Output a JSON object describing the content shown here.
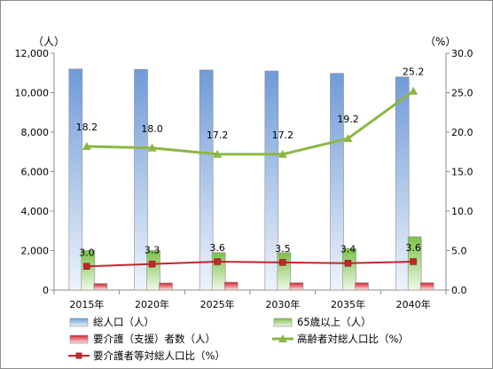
{
  "chart_data": {
    "type": "bar",
    "categories": [
      "2015年",
      "2020年",
      "2025年",
      "2030年",
      "2035年",
      "2040年"
    ],
    "left_axis": {
      "unit": "（人）",
      "ylim": [
        0,
        12000
      ],
      "ticks": [
        0,
        2000,
        4000,
        6000,
        8000,
        10000,
        12000
      ],
      "tick_labels": [
        "0",
        "2,000",
        "4,000",
        "6,000",
        "8,000",
        "10,000",
        "12,000"
      ]
    },
    "right_axis": {
      "unit": "（%）",
      "ylim": [
        0,
        30
      ],
      "ticks": [
        0,
        5,
        10,
        15,
        20,
        25,
        30
      ],
      "tick_labels": [
        "0.0",
        "5.0",
        "10.0",
        "15.0",
        "20.0",
        "25.0",
        "30.0"
      ]
    },
    "series": [
      {
        "name": "総人口（人）",
        "kind": "bar",
        "axis": "left",
        "color": "#8eb4e3",
        "values": [
          11200,
          11180,
          11150,
          11100,
          10980,
          10800
        ]
      },
      {
        "name": "65歳以上（人）",
        "kind": "bar",
        "axis": "left",
        "color": "#92d050",
        "values": [
          2000,
          2000,
          1900,
          1900,
          2100,
          2700
        ]
      },
      {
        "name": "要介護（支援）者数（人）",
        "kind": "bar",
        "axis": "left",
        "color": "#e0484a",
        "values": [
          330,
          360,
          400,
          370,
          370,
          370
        ]
      },
      {
        "name": "高齢者対総人口比（%）",
        "kind": "line",
        "axis": "right",
        "color": "#8db646",
        "marker": "triangle",
        "values": [
          18.2,
          18.0,
          17.2,
          17.2,
          19.2,
          25.2
        ],
        "labels": [
          "18.2",
          "18.0",
          "17.2",
          "17.2",
          "19.2",
          "25.2"
        ]
      },
      {
        "name": "要介護者等対総人口比（%）",
        "kind": "line",
        "axis": "right",
        "color": "#c0272d",
        "marker": "square",
        "values": [
          3.0,
          3.3,
          3.6,
          3.5,
          3.4,
          3.6
        ],
        "labels": [
          "3.0",
          "3.3",
          "3.6",
          "3.5",
          "3.4",
          "3.6"
        ]
      }
    ],
    "grid": false,
    "legend_position": "bottom"
  }
}
